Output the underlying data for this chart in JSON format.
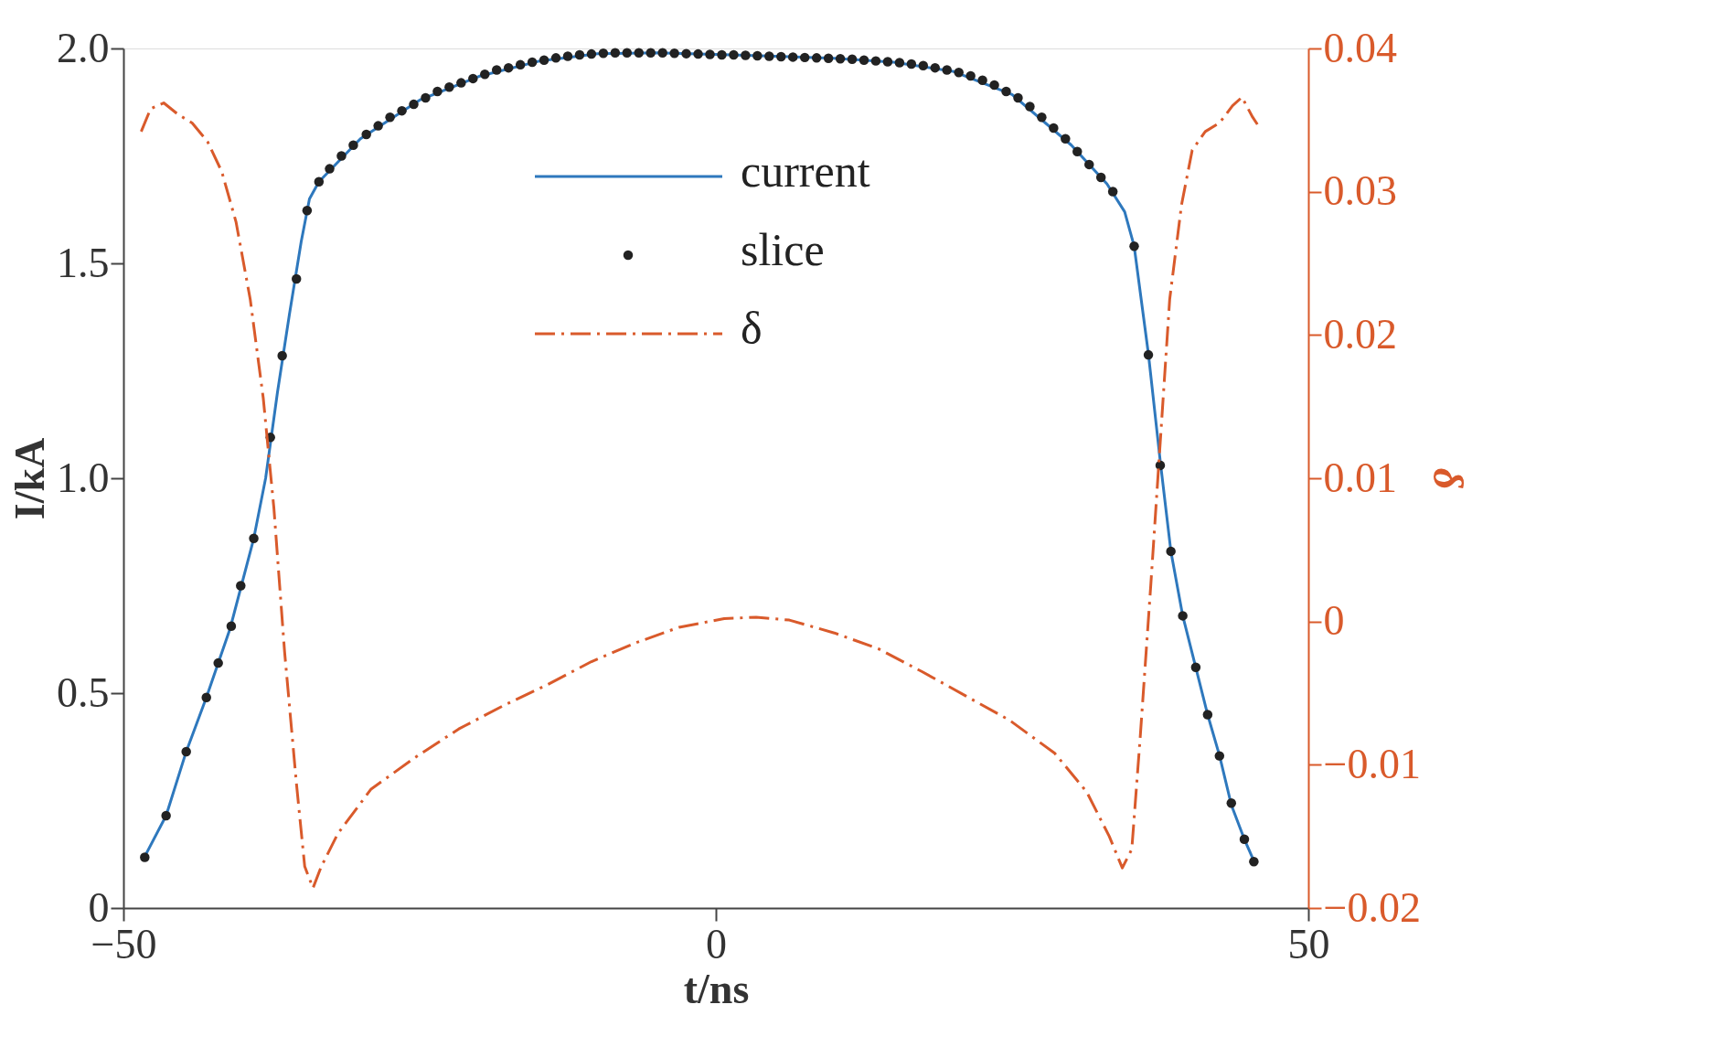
{
  "chart_data": {
    "type": "line",
    "xlabel": "t/ns",
    "ylabel": "I/kA",
    "y2label": "δ",
    "xlim": [
      -50,
      50
    ],
    "xticks": [
      -50,
      0,
      50
    ],
    "ylim": [
      0,
      2
    ],
    "yticks": [
      0,
      0.5,
      {
        "value": 1,
        "label": "1.0"
      },
      1.5,
      {
        "value": 2,
        "label": "2.0"
      }
    ],
    "y2lim": [
      -0.02,
      0.04
    ],
    "y2ticks": [
      -0.02,
      -0.01,
      0,
      0.01,
      0.02,
      0.03,
      0.04
    ],
    "grid": false,
    "legend": "top",
    "series": [
      {
        "name": "current",
        "color": "#2e78bd",
        "line_style": "solid",
        "x": [
          -48.2,
          -46.4,
          -44.7,
          -43,
          -41,
          -39,
          -38,
          -37,
          -36,
          -35,
          -34.3,
          -33.5,
          -30,
          -25,
          -20,
          -15,
          -10,
          -5,
          0,
          5,
          10,
          15,
          20,
          25,
          30,
          33,
          34.5,
          35.3,
          36.5,
          37.5,
          38.4,
          39.4,
          40.5,
          41.5,
          42.5,
          43.5,
          44.6,
          45.4
        ],
        "values": [
          0.12,
          0.215,
          0.364,
          0.49,
          0.65,
          0.86,
          1.0,
          1.2,
          1.38,
          1.55,
          1.65,
          1.69,
          1.79,
          1.88,
          1.935,
          1.97,
          1.988,
          1.99,
          1.986,
          1.982,
          1.977,
          1.968,
          1.947,
          1.893,
          1.775,
          1.685,
          1.62,
          1.54,
          1.29,
          1.04,
          0.83,
          0.68,
          0.56,
          0.45,
          0.355,
          0.24,
          0.16,
          0.11
        ]
      },
      {
        "name": "slice",
        "type": "scatter",
        "color": "#222222",
        "marker": "circle",
        "x": [
          -48.2,
          -46.4,
          -44.7,
          -43,
          -42,
          -40.9,
          -40.1,
          -39,
          -37.6,
          -36.6,
          -35.4,
          -34.5,
          -33.5,
          -32.6,
          -31.6,
          -30.6,
          -29.5,
          -28.5,
          -27.5,
          -26.5,
          -25.5,
          -24.5,
          -23.5,
          -22.5,
          -21.5,
          -20.5,
          -19.5,
          -18.5,
          -17.5,
          -16.5,
          -15.5,
          -14.5,
          -13.5,
          -12.5,
          -11.5,
          -10.5,
          -9.5,
          -8.5,
          -7.5,
          -6.5,
          -5.5,
          -4.5,
          -3.5,
          -2.5,
          -1.5,
          -0.5,
          0.5,
          1.5,
          2.5,
          3.5,
          4.5,
          5.5,
          6.5,
          7.5,
          8.5,
          9.5,
          10.5,
          11.5,
          12.5,
          13.5,
          14.5,
          15.5,
          16.5,
          17.5,
          18.5,
          19.5,
          20.5,
          21.5,
          22.5,
          23.5,
          24.5,
          25.5,
          26.5,
          27.5,
          28.5,
          29.5,
          30.5,
          31.5,
          32.5,
          33.5,
          35.3,
          36.5,
          37.5,
          38.4,
          39.4,
          40.5,
          41.5,
          42.5,
          43.5,
          44.6,
          45.4
        ],
        "values": [
          0.118,
          0.215,
          0.364,
          0.49,
          0.57,
          0.656,
          0.75,
          0.86,
          1.095,
          1.285,
          1.464,
          1.623,
          1.69,
          1.72,
          1.75,
          1.775,
          1.8,
          1.82,
          1.84,
          1.855,
          1.87,
          1.885,
          1.9,
          1.91,
          1.92,
          1.93,
          1.94,
          1.95,
          1.955,
          1.962,
          1.968,
          1.973,
          1.978,
          1.982,
          1.985,
          1.987,
          1.989,
          1.99,
          1.99,
          1.99,
          1.99,
          1.99,
          1.989,
          1.988,
          1.987,
          1.986,
          1.985,
          1.985,
          1.984,
          1.983,
          1.982,
          1.981,
          1.98,
          1.979,
          1.978,
          1.977,
          1.976,
          1.975,
          1.973,
          1.971,
          1.969,
          1.967,
          1.964,
          1.96,
          1.955,
          1.95,
          1.944,
          1.936,
          1.926,
          1.915,
          1.9,
          1.885,
          1.865,
          1.84,
          1.815,
          1.79,
          1.76,
          1.73,
          1.7,
          1.667,
          1.54,
          1.287,
          1.03,
          0.83,
          0.68,
          0.56,
          0.45,
          0.354,
          0.244,
          0.16,
          0.108
        ]
      },
      {
        "name": "δ",
        "type": "line",
        "axis": "y2",
        "color": "#d95a2b",
        "line_style": "dashed",
        "x": [
          -48.5,
          -47.7,
          -46.6,
          -45.4,
          -44.2,
          -42.9,
          -41.7,
          -40.5,
          -39.3,
          -38.2,
          -37.3,
          -36.4,
          -35.4,
          -34.7,
          -34,
          -33.3,
          -31.9,
          -29.1,
          -25.4,
          -21.7,
          -18,
          -14.2,
          -10.5,
          -6.8,
          -3.1,
          0.7,
          3.4,
          6.2,
          10,
          13.7,
          17.4,
          21.1,
          24.8,
          28.6,
          31.3,
          33.2,
          34.3,
          35.1,
          35.8,
          36.7,
          37.5,
          38.3,
          39.3,
          40.2,
          41.3,
          42.5,
          43.6,
          44.4,
          45.3,
          45.7
        ],
        "values": [
          0.0342,
          0.0358,
          0.0362,
          0.0354,
          0.0348,
          0.0335,
          0.0314,
          0.0279,
          0.0225,
          0.0156,
          0.0079,
          -0.0021,
          -0.0113,
          -0.0171,
          -0.0186,
          -0.0171,
          -0.0148,
          -0.0117,
          -0.0095,
          -0.0075,
          -0.0059,
          -0.0044,
          -0.0028,
          -0.0015,
          -0.0004,
          0.0002,
          0.0003,
          0.0001,
          -0.0008,
          -0.0019,
          -0.0035,
          -0.0052,
          -0.0069,
          -0.0092,
          -0.0119,
          -0.015,
          -0.0172,
          -0.0159,
          -0.0082,
          0.0025,
          0.0125,
          0.0225,
          0.0291,
          0.0329,
          0.0342,
          0.0348,
          0.036,
          0.0366,
          0.0352,
          0.0347
        ]
      }
    ]
  }
}
